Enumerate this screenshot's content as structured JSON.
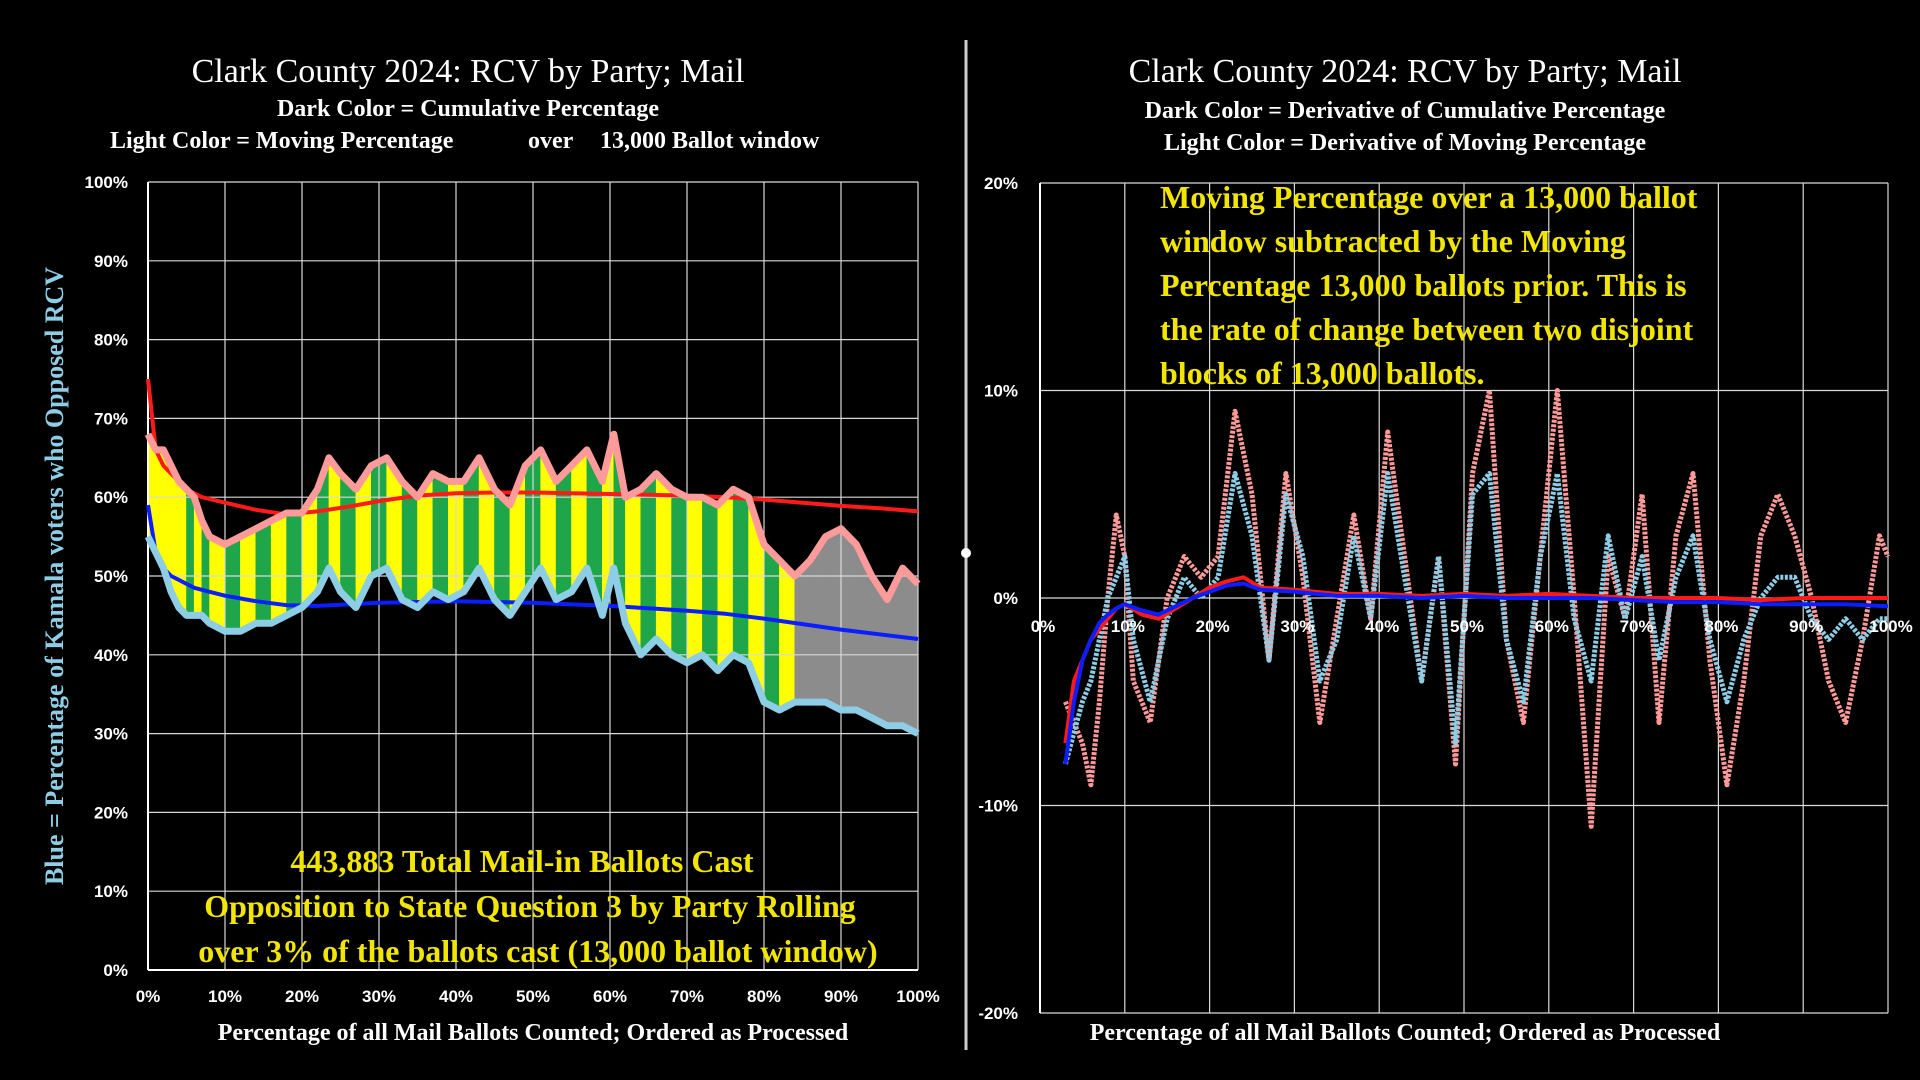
{
  "chart_data": [
    {
      "type": "area",
      "title": "Clark County 2024: RCV by Party; Mail",
      "subtitle_lines": [
        "Dark Color = Cumulative Percentage",
        "Light Color = Moving Percentage",
        "over",
        "13,000 Ballot window"
      ],
      "ylabel": "Blue = Percentage of  Kamala voters who Opposed RCV",
      "xlabel": "Percentage of all Mail Ballots Counted; Ordered as Processed",
      "xlim": [
        0,
        100
      ],
      "ylim": [
        0,
        100
      ],
      "x_ticks": [
        "0%",
        "10%",
        "20%",
        "30%",
        "40%",
        "50%",
        "60%",
        "70%",
        "80%",
        "90%",
        "100%"
      ],
      "y_ticks": [
        "0%",
        "10%",
        "20%",
        "30%",
        "40%",
        "50%",
        "60%",
        "70%",
        "80%",
        "90%",
        "100%"
      ],
      "annotation_lines": [
        "443,883 Total Mail-in Ballots Cast",
        "Opposition to State Question 3 by Party Rolling",
        "over 3% of the ballots cast (13,000 ballot window)"
      ],
      "grid": true,
      "fill_colors": {
        "yellow": "#ffff00",
        "green": "#1fa64a",
        "gray": "#8c8c8c"
      },
      "series": [
        {
          "color": "#ff1a1a",
          "x": [
            0,
            1,
            2,
            3,
            4,
            5,
            7,
            10,
            14,
            18,
            22,
            26,
            30,
            35,
            40,
            45,
            50,
            55,
            60,
            65,
            70,
            75,
            80,
            85,
            90,
            95,
            100
          ],
          "y": [
            75,
            66,
            64,
            63,
            62,
            61,
            60,
            59.3,
            58.4,
            57.8,
            58.2,
            58.8,
            59.5,
            60.2,
            60.5,
            60.6,
            60.6,
            60.5,
            60.4,
            60.3,
            60.2,
            60,
            59.7,
            59.3,
            58.9,
            58.6,
            58.2
          ]
        },
        {
          "color": "#ff9a9a",
          "x": [
            0,
            1,
            2,
            3,
            4,
            5,
            6,
            7,
            8,
            10,
            12,
            14,
            16,
            18,
            20,
            22,
            23.5,
            25,
            27,
            29,
            31,
            33,
            35,
            37,
            39,
            41,
            43,
            45,
            47,
            49,
            51,
            53,
            55,
            57,
            59,
            60.5,
            62,
            64,
            66,
            68,
            70,
            72,
            74,
            76,
            78,
            80,
            82,
            84,
            86,
            88,
            90,
            92,
            94,
            96,
            98,
            100
          ],
          "y": [
            68,
            66,
            66,
            64,
            62,
            61,
            60,
            57,
            55,
            54,
            55,
            56,
            57,
            58,
            58,
            61,
            65,
            63,
            61,
            64,
            65,
            62,
            60,
            63,
            62,
            62,
            65,
            61,
            59,
            64,
            66,
            62,
            64,
            66,
            62,
            68,
            60,
            61,
            63,
            61,
            60,
            60,
            59,
            61,
            60,
            54,
            52,
            50,
            52,
            55,
            56,
            54,
            50,
            47,
            51,
            49
          ]
        },
        {
          "color": "#0a1eff",
          "x": [
            0,
            1,
            2,
            3,
            4,
            5,
            6,
            8,
            10,
            14,
            18,
            22,
            26,
            30,
            35,
            40,
            45,
            50,
            55,
            60,
            65,
            70,
            75,
            80,
            85,
            90,
            95,
            100
          ],
          "y": [
            59,
            53,
            51,
            50,
            49.5,
            49,
            48.5,
            48,
            47.5,
            46.8,
            46.3,
            46.2,
            46.4,
            46.6,
            46.7,
            46.8,
            46.7,
            46.6,
            46.4,
            46.2,
            45.9,
            45.6,
            45.2,
            44.6,
            43.9,
            43.2,
            42.6,
            42
          ]
        },
        {
          "color": "#8ecde6",
          "x": [
            0,
            1,
            2,
            3,
            4,
            5,
            6,
            7,
            8,
            10,
            12,
            14,
            16,
            18,
            20,
            22,
            23.5,
            25,
            27,
            29,
            31,
            33,
            35,
            37,
            39,
            41,
            43,
            45,
            47,
            49,
            51,
            53,
            55,
            57,
            59,
            60.5,
            62,
            64,
            66,
            68,
            70,
            72,
            74,
            76,
            78,
            80,
            82,
            84,
            86,
            88,
            90,
            92,
            94,
            96,
            98,
            100
          ],
          "y": [
            55,
            53,
            51,
            48,
            46,
            45,
            45,
            45,
            44,
            43,
            43,
            44,
            44,
            45,
            46,
            48,
            51,
            48,
            46,
            50,
            51,
            47,
            46,
            48,
            47,
            48,
            51,
            47,
            45,
            48,
            51,
            47,
            48,
            51,
            45,
            51,
            44,
            40,
            42,
            40,
            39,
            40,
            38,
            40,
            39,
            34,
            33,
            34,
            34,
            34,
            33,
            33,
            32,
            31,
            31,
            30
          ]
        }
      ]
    },
    {
      "type": "scatter",
      "title": "Clark County 2024:  RCV by Party; Mail",
      "subtitle_lines": [
        "Dark Color = Derivative of  Cumulative Percentage",
        "Light Color = Derivative of  Moving Percentage"
      ],
      "xlabel": "Percentage of  all Mail Ballots Counted; Ordered as Processed",
      "xlim": [
        0,
        100
      ],
      "ylim": [
        -20,
        20
      ],
      "x_ticks": [
        "0%",
        "10%",
        "20%",
        "30%",
        "40%",
        "50%",
        "60%",
        "70%",
        "80%",
        "90%",
        "100%"
      ],
      "y_ticks": [
        "20%",
        "10%",
        "0%",
        "-10%",
        "-20%"
      ],
      "annotation_lines": [
        "Moving Percentage over a 13,000 ballot",
        "window subtracted by the Moving",
        "Percentage 13,000 ballots prior. This is",
        "the rate of change between two disjoint",
        "blocks of 13,000 ballots."
      ],
      "grid": true,
      "series": [
        {
          "color": "#ff9a9a",
          "x": [
            3,
            5,
            6,
            7,
            8,
            9,
            10,
            11,
            13,
            15,
            17,
            19,
            21,
            23,
            25,
            27,
            29,
            31,
            33,
            35,
            37,
            39,
            41,
            43,
            45,
            47,
            49,
            51,
            53,
            55,
            57,
            59,
            61,
            63,
            65,
            67,
            69,
            71,
            73,
            75,
            77,
            79,
            81,
            83,
            85,
            87,
            89,
            91,
            93,
            95,
            97,
            99,
            100
          ],
          "y": [
            -5,
            -7,
            -9,
            -5,
            0,
            4,
            2,
            -4,
            -6,
            0,
            2,
            1,
            2,
            9,
            5,
            -3,
            6,
            1,
            -6,
            -1,
            4,
            -1,
            8,
            2,
            -4,
            2,
            -8,
            6,
            10,
            -2,
            -6,
            2,
            10,
            0,
            -11,
            2,
            -1,
            5,
            -6,
            3,
            6,
            -3,
            -9,
            -4,
            3,
            5,
            3,
            0,
            -4,
            -6,
            -2,
            3,
            2
          ]
        },
        {
          "color": "#8ecde6",
          "x": [
            3,
            5,
            6,
            7,
            8,
            9,
            10,
            11,
            13,
            15,
            17,
            19,
            21,
            23,
            25,
            27,
            29,
            31,
            33,
            35,
            37,
            39,
            41,
            43,
            45,
            47,
            49,
            51,
            53,
            55,
            57,
            59,
            61,
            63,
            65,
            67,
            69,
            71,
            73,
            75,
            77,
            79,
            81,
            83,
            85,
            87,
            89,
            91,
            93,
            95,
            97,
            99,
            100
          ],
          "y": [
            -8,
            -5,
            -4,
            -2,
            0,
            1,
            2,
            -2,
            -5,
            -1,
            1,
            0,
            1,
            6,
            3,
            -3,
            5,
            2,
            -4,
            -2,
            3,
            -1,
            6,
            1,
            -4,
            2,
            -7,
            5,
            6,
            -2,
            -5,
            2,
            6,
            -1,
            -4,
            3,
            -1,
            2,
            -3,
            1,
            3,
            -2,
            -5,
            -2,
            0,
            1,
            1,
            -1,
            -2,
            -1,
            -2,
            -1,
            -1
          ]
        },
        {
          "color": "#ff1a1a",
          "x": [
            3,
            4,
            5,
            6,
            7,
            8,
            9,
            10,
            12,
            14,
            16,
            18,
            20,
            22,
            24,
            26,
            30,
            35,
            40,
            45,
            50,
            55,
            60,
            65,
            70,
            75,
            80,
            85,
            90,
            95,
            100
          ],
          "y": [
            -7,
            -4,
            -3,
            -2,
            -1.5,
            -1,
            -0.5,
            -0.3,
            -0.8,
            -1,
            -0.5,
            0,
            0.5,
            0.8,
            1,
            0.5,
            0.4,
            0.2,
            0.2,
            0.1,
            0.2,
            0.1,
            0.2,
            0.1,
            0,
            0,
            0,
            -0.1,
            0,
            0,
            0
          ]
        },
        {
          "color": "#0a1eff",
          "x": [
            3,
            4,
            5,
            6,
            7,
            8,
            9,
            10,
            12,
            14,
            16,
            18,
            20,
            22,
            24,
            26,
            30,
            35,
            40,
            45,
            50,
            55,
            60,
            65,
            70,
            75,
            80,
            85,
            90,
            95,
            100
          ],
          "y": [
            -8,
            -5,
            -3,
            -2,
            -1.2,
            -0.8,
            -0.5,
            -0.3,
            -0.6,
            -0.8,
            -0.4,
            0,
            0.3,
            0.6,
            0.7,
            0.4,
            0.3,
            0.1,
            0.1,
            0,
            0.1,
            0,
            0,
            0,
            -0.1,
            -0.2,
            -0.2,
            -0.3,
            -0.3,
            -0.3,
            -0.4
          ]
        }
      ]
    }
  ]
}
